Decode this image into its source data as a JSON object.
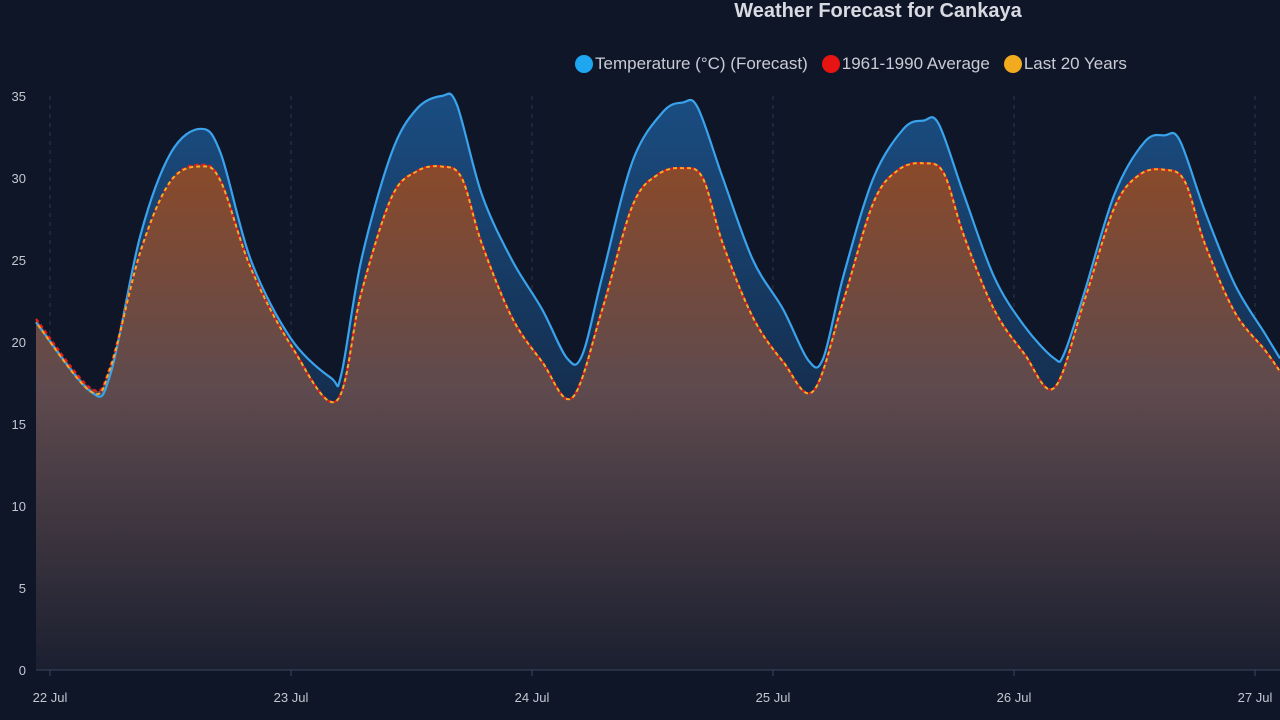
{
  "chart_data": {
    "type": "line",
    "title": "Weather Forecast for Cankaya",
    "xlabel": "",
    "ylabel": "",
    "x_unit": "hours since 22 Jul 00:00",
    "ylim": [
      0,
      35
    ],
    "yticks": [
      "0",
      "5",
      "10",
      "15",
      "20",
      "25",
      "30",
      "35"
    ],
    "xticks": [
      {
        "label": "22 Jul",
        "hour": 0
      },
      {
        "label": "23 Jul",
        "hour": 24
      },
      {
        "label": "24 Jul",
        "hour": 48
      },
      {
        "label": "25 Jul",
        "hour": 72
      },
      {
        "label": "26 Jul",
        "hour": 96
      },
      {
        "label": "27 Jul",
        "hour": 120
      }
    ],
    "grid": "vertical dashed",
    "legend_position": "top-right",
    "series": [
      {
        "name": "Temperature (°C) (Forecast)",
        "color": "#3aa3ec",
        "points": [
          [
            -1.5,
            21.2
          ],
          [
            4,
            17.0
          ],
          [
            6,
            18.0
          ],
          [
            9,
            26.5
          ],
          [
            12,
            31.5
          ],
          [
            15,
            33.0
          ],
          [
            17,
            31.5
          ],
          [
            20,
            25
          ],
          [
            24,
            20.2
          ],
          [
            28,
            17.8
          ],
          [
            29,
            18
          ],
          [
            31,
            25
          ],
          [
            34,
            31.5
          ],
          [
            36.5,
            34.2
          ],
          [
            39,
            35.0
          ],
          [
            40.5,
            34.5
          ],
          [
            43,
            29
          ],
          [
            46,
            25
          ],
          [
            49,
            22
          ],
          [
            51.5,
            19
          ],
          [
            53,
            19.2
          ],
          [
            55,
            24
          ],
          [
            58,
            31
          ],
          [
            61,
            34
          ],
          [
            63,
            34.6
          ],
          [
            64.5,
            34.3
          ],
          [
            67,
            30
          ],
          [
            70,
            25
          ],
          [
            73,
            22
          ],
          [
            75.5,
            18.9
          ],
          [
            77,
            19
          ],
          [
            79,
            24
          ],
          [
            82,
            30
          ],
          [
            85,
            33
          ],
          [
            87,
            33.5
          ],
          [
            88.5,
            33.3
          ],
          [
            91,
            29
          ],
          [
            94,
            24
          ],
          [
            97,
            21
          ],
          [
            100,
            19
          ],
          [
            101,
            19.3
          ],
          [
            103,
            23
          ],
          [
            106,
            29
          ],
          [
            109,
            32.2
          ],
          [
            111,
            32.6
          ],
          [
            112.5,
            32.3
          ],
          [
            115,
            28
          ],
          [
            118,
            23.5
          ],
          [
            121,
            20.5
          ],
          [
            124,
            19.0
          ]
        ]
      },
      {
        "name": "1961-1990 Average",
        "color": "#e81c1c",
        "points": [
          [
            -1.5,
            21.4
          ],
          [
            4,
            17.2
          ],
          [
            6,
            18.5
          ],
          [
            9,
            25.5
          ],
          [
            12,
            29.8
          ],
          [
            15,
            30.8
          ],
          [
            17,
            29.8
          ],
          [
            20,
            24.5
          ],
          [
            24,
            19.8
          ],
          [
            28.5,
            16.4
          ],
          [
            31,
            23
          ],
          [
            34,
            28.8
          ],
          [
            36.5,
            30.4
          ],
          [
            39,
            30.7
          ],
          [
            41,
            30
          ],
          [
            43,
            26
          ],
          [
            46,
            21.5
          ],
          [
            49,
            18.8
          ],
          [
            52,
            16.6
          ],
          [
            55,
            22
          ],
          [
            58,
            28.3
          ],
          [
            60.5,
            30.2
          ],
          [
            63,
            30.6
          ],
          [
            65,
            30
          ],
          [
            67,
            26
          ],
          [
            70,
            21.5
          ],
          [
            73,
            18.8
          ],
          [
            76,
            17.0
          ],
          [
            79,
            22.5
          ],
          [
            82,
            28.5
          ],
          [
            84.5,
            30.5
          ],
          [
            87,
            30.9
          ],
          [
            89,
            30.3
          ],
          [
            91,
            26.5
          ],
          [
            94,
            22
          ],
          [
            97,
            19.3
          ],
          [
            100,
            17.2
          ],
          [
            103,
            22.5
          ],
          [
            106,
            28.2
          ],
          [
            108.5,
            30.2
          ],
          [
            111,
            30.5
          ],
          [
            113,
            29.8
          ],
          [
            115,
            26
          ],
          [
            118,
            21.8
          ],
          [
            121,
            19.5
          ],
          [
            124,
            18.2
          ]
        ]
      },
      {
        "name": "Last 20 Years",
        "color": "#f5ac22",
        "points": [
          [
            -1.5,
            21.2
          ],
          [
            4,
            17.0
          ],
          [
            6,
            18.4
          ],
          [
            9,
            25.5
          ],
          [
            12,
            29.8
          ],
          [
            15,
            30.7
          ],
          [
            17,
            29.8
          ],
          [
            20,
            24.5
          ],
          [
            24,
            19.8
          ],
          [
            28.5,
            16.4
          ],
          [
            31,
            23
          ],
          [
            34,
            28.8
          ],
          [
            36.5,
            30.4
          ],
          [
            39,
            30.7
          ],
          [
            41,
            30
          ],
          [
            43,
            26
          ],
          [
            46,
            21.5
          ],
          [
            49,
            18.8
          ],
          [
            52,
            16.6
          ],
          [
            55,
            22
          ],
          [
            58,
            28.3
          ],
          [
            60.5,
            30.2
          ],
          [
            63,
            30.6
          ],
          [
            65,
            30
          ],
          [
            67,
            26
          ],
          [
            70,
            21.5
          ],
          [
            73,
            18.8
          ],
          [
            76,
            17.0
          ],
          [
            79,
            22.5
          ],
          [
            82,
            28.5
          ],
          [
            84.5,
            30.5
          ],
          [
            87,
            30.9
          ],
          [
            89,
            30.3
          ],
          [
            91,
            26.5
          ],
          [
            94,
            22
          ],
          [
            97,
            19.3
          ],
          [
            100,
            17.2
          ],
          [
            103,
            22.5
          ],
          [
            106,
            28.2
          ],
          [
            108.5,
            30.2
          ],
          [
            111,
            30.5
          ],
          [
            113,
            29.8
          ],
          [
            115,
            26
          ],
          [
            118,
            21.8
          ],
          [
            121,
            19.5
          ],
          [
            124,
            18.2
          ]
        ]
      }
    ]
  }
}
